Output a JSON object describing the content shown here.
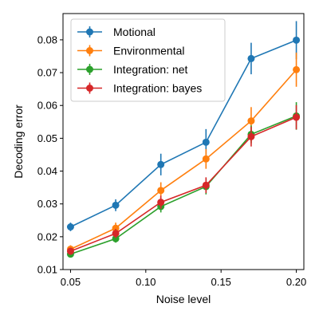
{
  "chart_data": {
    "type": "line",
    "xlabel": "Noise level",
    "ylabel": "Decoding error",
    "xlim": [
      0.045,
      0.205
    ],
    "ylim": [
      0.01,
      0.088
    ],
    "xticks": [
      0.05,
      0.1,
      0.15,
      0.2
    ],
    "xtick_labels": [
      "0.05",
      "0.10",
      "0.15",
      "0.20"
    ],
    "yticks": [
      0.01,
      0.02,
      0.03,
      0.04,
      0.05,
      0.06,
      0.07,
      0.08
    ],
    "ytick_labels": [
      "0.01",
      "0.02",
      "0.03",
      "0.04",
      "0.05",
      "0.06",
      "0.07",
      "0.08"
    ],
    "grid": false,
    "legend_position": "top-left",
    "x": [
      0.05,
      0.08,
      0.11,
      0.14,
      0.17,
      0.2
    ],
    "series": [
      {
        "name": "Motional",
        "color": "#1f77b4",
        "values": [
          0.023,
          0.0296,
          0.042,
          0.0488,
          0.0743,
          0.0799
        ],
        "errors": [
          0.0013,
          0.0018,
          0.0033,
          0.004,
          0.0048,
          0.0058
        ]
      },
      {
        "name": "Environmental",
        "color": "#ff7f0e",
        "values": [
          0.0162,
          0.0226,
          0.0341,
          0.0437,
          0.0553,
          0.0709
        ],
        "errors": [
          0.0012,
          0.0017,
          0.0025,
          0.003,
          0.0042,
          0.0052
        ]
      },
      {
        "name": "Integration: net",
        "color": "#2ca02c",
        "values": [
          0.0147,
          0.0194,
          0.0292,
          0.0353,
          0.0512,
          0.0568
        ],
        "errors": [
          0.0009,
          0.0012,
          0.0018,
          0.0024,
          0.0027,
          0.0042
        ]
      },
      {
        "name": "Integration: bayes",
        "color": "#d62728",
        "values": [
          0.0156,
          0.021,
          0.0305,
          0.0357,
          0.0505,
          0.0564
        ],
        "errors": [
          0.001,
          0.0014,
          0.002,
          0.0024,
          0.003,
          0.0037
        ]
      }
    ]
  }
}
